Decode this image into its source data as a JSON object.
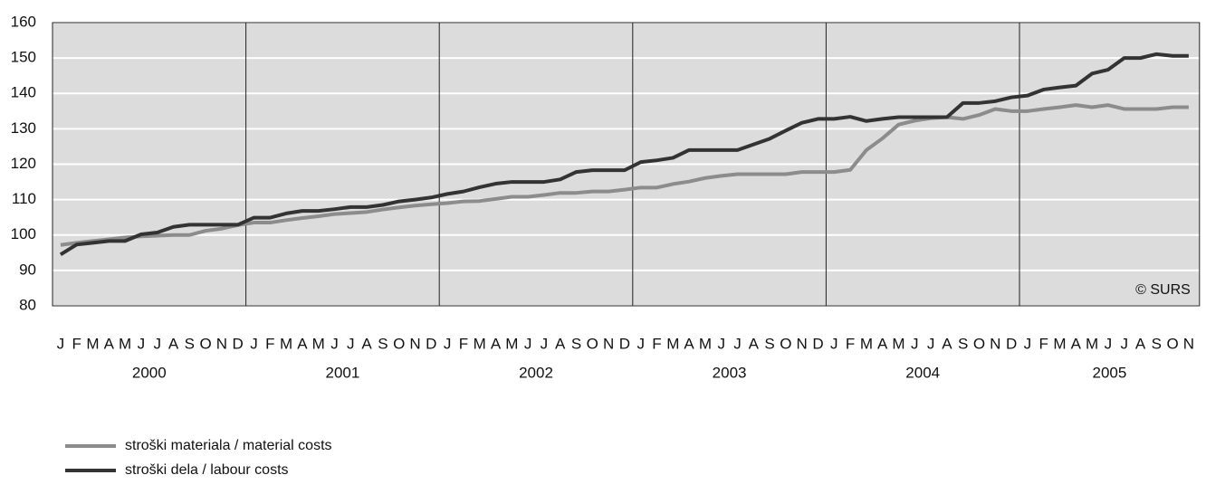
{
  "chart_data": {
    "type": "line",
    "categories": [
      "J",
      "F",
      "M",
      "A",
      "M",
      "J",
      "J",
      "A",
      "S",
      "O",
      "N",
      "D",
      "J",
      "F",
      "M",
      "A",
      "M",
      "J",
      "J",
      "A",
      "S",
      "O",
      "N",
      "D",
      "J",
      "F",
      "M",
      "A",
      "M",
      "J",
      "J",
      "A",
      "S",
      "O",
      "N",
      "D",
      "J",
      "F",
      "M",
      "A",
      "M",
      "J",
      "J",
      "A",
      "S",
      "O",
      "N",
      "D",
      "J",
      "F",
      "M",
      "A",
      "M",
      "J",
      "J",
      "A",
      "S",
      "O",
      "N",
      "D",
      "J",
      "F",
      "M",
      "A",
      "M",
      "J",
      "J",
      "A",
      "S",
      "O",
      "N"
    ],
    "years": [
      "2000",
      "2001",
      "2002",
      "2003",
      "2004",
      "2005"
    ],
    "annotation": "© SURS",
    "series": [
      {
        "name": "stroški materiala / material costs",
        "color": "#8c8c8c",
        "values": [
          97.2,
          97.8,
          98.3,
          98.8,
          99.3,
          99.6,
          99.8,
          100,
          100,
          101.2,
          101.8,
          102.8,
          103.5,
          103.5,
          104.2,
          104.8,
          105.3,
          105.9,
          106.2,
          106.5,
          107.2,
          107.8,
          108.3,
          108.7,
          109,
          109.5,
          109.6,
          110.2,
          110.8,
          110.8,
          111.3,
          111.9,
          111.9,
          112.3,
          112.3,
          112.8,
          113.4,
          113.4,
          114.4,
          115.1,
          116.1,
          116.7,
          117.2,
          117.2,
          117.2,
          117.2,
          117.8,
          117.8,
          117.8,
          118.4,
          124,
          127.3,
          131.2,
          132.3,
          133,
          133.3,
          132.8,
          133.9,
          135.6,
          135,
          135,
          135.6,
          136.1,
          136.7,
          136.1,
          136.7,
          135.6,
          135.6,
          135.6,
          136.1,
          136.1
        ]
      },
      {
        "name": "stroški dela / labour costs",
        "color": "#333333",
        "values": [
          94.5,
          97.3,
          97.8,
          98.3,
          98.3,
          100.2,
          100.7,
          102.3,
          102.9,
          102.9,
          102.9,
          102.9,
          104.9,
          104.9,
          106.1,
          106.8,
          106.8,
          107.3,
          107.9,
          107.9,
          108.5,
          109.5,
          110,
          110.6,
          111.6,
          112.3,
          113.5,
          114.5,
          115,
          115,
          115,
          115.7,
          117.8,
          118.3,
          118.3,
          118.3,
          120.6,
          121.1,
          121.8,
          124,
          124,
          124,
          124,
          125.6,
          127.2,
          129.5,
          131.7,
          132.8,
          132.8,
          133.4,
          132.2,
          132.8,
          133.3,
          133.3,
          133.3,
          133.3,
          137.3,
          137.3,
          137.8,
          138.9,
          139.4,
          141.1,
          141.7,
          142.2,
          145.6,
          146.7,
          150,
          150,
          151.1,
          150.6,
          150.6
        ]
      }
    ],
    "ylim": [
      80,
      160
    ],
    "yticks": [
      80,
      90,
      100,
      110,
      120,
      130,
      140,
      150,
      160
    ],
    "grid": true
  }
}
